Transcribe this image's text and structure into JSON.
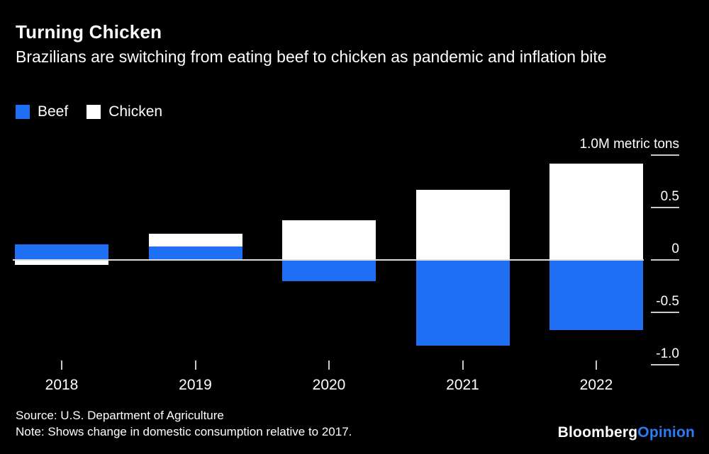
{
  "header": {
    "title": "Turning Chicken",
    "subtitle": "Brazilians are switching from eating beef to chicken as pandemic and inflation bite"
  },
  "legend": {
    "items": [
      {
        "label": "Beef",
        "color": "#1f6ff5"
      },
      {
        "label": "Chicken",
        "color": "#ffffff"
      }
    ]
  },
  "chart_data": {
    "type": "bar",
    "subtype": "diverging-stacked",
    "title": "Turning Chicken",
    "unit_label": "1.0M metric tons",
    "categories": [
      "2018",
      "2019",
      "2020",
      "2021",
      "2022"
    ],
    "series": [
      {
        "name": "Beef",
        "color": "#1f6ff5",
        "values": [
          0.15,
          0.13,
          -0.2,
          -0.82,
          -0.67
        ]
      },
      {
        "name": "Chicken",
        "color": "#ffffff",
        "values": [
          -0.05,
          0.12,
          0.38,
          0.67,
          0.92
        ]
      }
    ],
    "y_ticks": [
      {
        "value": 1.0,
        "label": "1.0M metric tons"
      },
      {
        "value": 0.5,
        "label": "0.5"
      },
      {
        "value": 0,
        "label": "0"
      },
      {
        "value": -0.5,
        "label": "-0.5"
      },
      {
        "value": -1.0,
        "label": "-1.0"
      }
    ],
    "ylim": [
      -1.0,
      1.0
    ],
    "grid": false,
    "legend_position": "top-left"
  },
  "footer": {
    "source": "Source: U.S. Department of Agriculture",
    "note": "Note: Shows change in domestic consumption relative to 2017.",
    "brand": {
      "bloomberg": "Bloomberg",
      "opinion": "Opinion"
    }
  },
  "colors": {
    "background": "#000000",
    "beef_blue": "#1f6ff5",
    "chicken_white": "#ffffff",
    "brand_blue": "#2f7af7"
  }
}
